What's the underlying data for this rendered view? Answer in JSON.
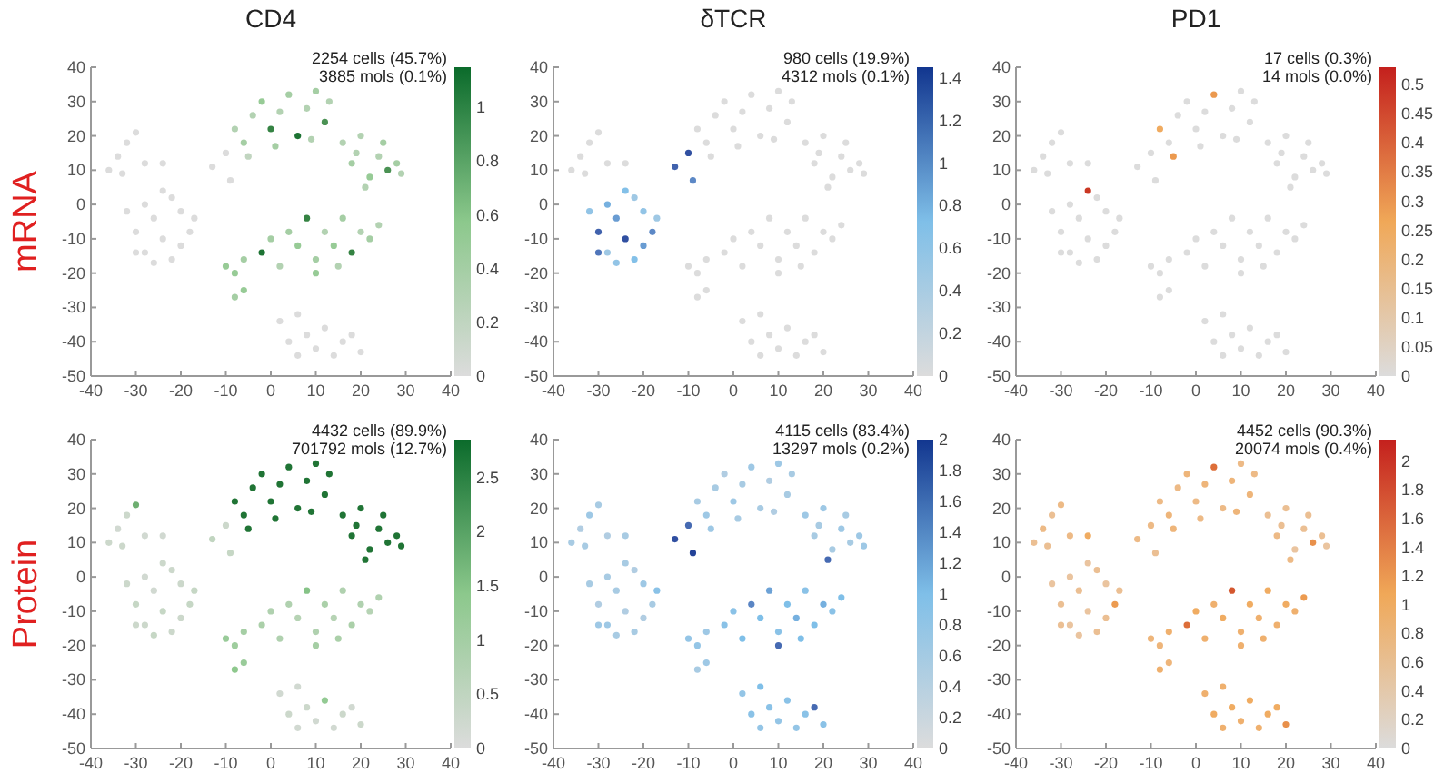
{
  "chart_data": [
    {
      "type": "scatter",
      "title": "CD4",
      "ylabel": "mRNA",
      "annotations": [
        "2254 cells (45.7%)",
        "3885 mols (0.1%)"
      ],
      "xlim": [
        -40,
        40
      ],
      "ylim": [
        -50,
        40
      ],
      "xticks": [
        -40,
        -30,
        -20,
        -10,
        0,
        10,
        20,
        30,
        40
      ],
      "yticks": [
        -50,
        -40,
        -30,
        -20,
        -10,
        0,
        10,
        20,
        30,
        40
      ],
      "clim": [
        0,
        1.15
      ],
      "cticks": [
        0,
        0.2,
        0.4,
        0.6,
        0.8,
        1
      ],
      "marker": "circle",
      "grid": false,
      "series": [
        {
          "x": [
            -36,
            -34,
            -32,
            -30,
            -28,
            -33,
            -24,
            -32,
            -30,
            -28,
            -26,
            -24,
            -22,
            -20,
            -18,
            -22,
            -28,
            -30,
            -26,
            -20,
            -24,
            -17,
            -13,
            -9,
            -10,
            -8,
            -6,
            -4,
            -2,
            0,
            2,
            4,
            6,
            8,
            10,
            12,
            13,
            -5,
            1,
            9,
            16,
            18,
            20,
            22,
            24,
            26,
            28,
            21,
            25,
            29,
            19,
            -10,
            -6,
            -2,
            2,
            4,
            6,
            8,
            10,
            12,
            14,
            16,
            18,
            20,
            22,
            24,
            10,
            0,
            15,
            -8,
            -8,
            -6,
            2,
            4,
            6,
            8,
            10,
            12,
            14,
            16,
            18,
            20,
            6
          ],
          "values": [
            10,
            14,
            18,
            21,
            12,
            9,
            12,
            -2,
            -8,
            -14,
            -4,
            -10,
            -16,
            -2,
            -8,
            2,
            0,
            -14,
            -17,
            -12,
            4,
            -4,
            11,
            7,
            15,
            22,
            18,
            26,
            30,
            22,
            27,
            32,
            20,
            28,
            33,
            24,
            30,
            14,
            17,
            19,
            18,
            12,
            20,
            8,
            14,
            10,
            12,
            5,
            18,
            9,
            15,
            -18,
            -16,
            -14,
            -18,
            -8,
            -12,
            -4,
            -16,
            -8,
            -12,
            -4,
            -14,
            -8,
            -10,
            -6,
            -20,
            -10,
            -18,
            -20,
            -27,
            -25,
            -34,
            -40,
            -44,
            -38,
            -42,
            -36,
            -44,
            -40,
            -38,
            -43,
            -32
          ],
          "cvalues": [
            0,
            0,
            0,
            0,
            0,
            0,
            0,
            0,
            0,
            0,
            0,
            0,
            0,
            0,
            0,
            0,
            0,
            0,
            0,
            0,
            0,
            0,
            0,
            0,
            0,
            0.3,
            0.4,
            0.3,
            0.5,
            1.0,
            0.3,
            0.4,
            1.1,
            0.3,
            0.4,
            0.9,
            0.3,
            0.2,
            0.4,
            0.3,
            0.3,
            0.4,
            0.3,
            0.5,
            0.3,
            0.9,
            0.4,
            0.3,
            0.4,
            0.3,
            0.3,
            0.5,
            0.4,
            1.1,
            0.3,
            0.4,
            0.5,
            1.0,
            0.4,
            0.3,
            0.5,
            0.4,
            1.0,
            0.3,
            0.4,
            0.3,
            0.5,
            0.4,
            0.3,
            0.5,
            0.4,
            0.5,
            0,
            0,
            0,
            0,
            0,
            0,
            0,
            0,
            0,
            0,
            0
          ]
        }
      ]
    },
    {
      "type": "scatter",
      "title": "δTCR",
      "annotations": [
        "980 cells (19.9%)",
        "4312 mols (0.1%)"
      ],
      "xlim": [
        -40,
        40
      ],
      "ylim": [
        -50,
        40
      ],
      "xticks": [
        -40,
        -30,
        -20,
        -10,
        0,
        10,
        20,
        30,
        40
      ],
      "yticks": [
        -50,
        -40,
        -30,
        -20,
        -10,
        0,
        10,
        20,
        30,
        40
      ],
      "clim": [
        0,
        1.45
      ],
      "cticks": [
        0,
        0.2,
        0.4,
        0.6,
        0.8,
        1,
        1.2,
        1.4
      ],
      "marker": "circle",
      "grid": false,
      "series": [
        {
          "x": [
            -36,
            -34,
            -32,
            -30,
            -28,
            -33,
            -24,
            -32,
            -30,
            -28,
            -26,
            -24,
            -22,
            -20,
            -18,
            -22,
            -28,
            -30,
            -26,
            -20,
            -24,
            -17,
            -13,
            -9,
            -10,
            -8,
            -6,
            -4,
            -2,
            0,
            2,
            4,
            6,
            8,
            10,
            12,
            13,
            -5,
            1,
            9,
            16,
            18,
            20,
            22,
            24,
            26,
            28,
            21,
            25,
            29,
            19,
            -10,
            -6,
            -2,
            2,
            4,
            6,
            8,
            10,
            12,
            14,
            16,
            18,
            20,
            22,
            24,
            10,
            0,
            15,
            -8,
            -8,
            -6,
            2,
            4,
            6,
            8,
            10,
            12,
            14,
            16,
            18,
            20,
            6
          ],
          "values": [
            10,
            14,
            18,
            21,
            12,
            9,
            12,
            -2,
            -8,
            -14,
            -4,
            -10,
            -16,
            -2,
            -8,
            2,
            0,
            -14,
            -17,
            -12,
            4,
            -4,
            11,
            7,
            15,
            22,
            18,
            26,
            30,
            22,
            27,
            32,
            20,
            28,
            33,
            24,
            30,
            14,
            17,
            19,
            18,
            12,
            20,
            8,
            14,
            10,
            12,
            5,
            18,
            9,
            15,
            -18,
            -16,
            -14,
            -18,
            -8,
            -12,
            -4,
            -16,
            -8,
            -12,
            -4,
            -14,
            -8,
            -10,
            -6,
            -20,
            -10,
            -18,
            -20,
            -27,
            -25,
            -34,
            -40,
            -44,
            -38,
            -42,
            -36,
            -44,
            -40,
            -38,
            -43,
            -32
          ],
          "cvalues": [
            0,
            0,
            0,
            0,
            0,
            0,
            0,
            0.6,
            1.2,
            0.5,
            0.9,
            1.3,
            0.7,
            0.6,
            1.0,
            0.5,
            0.8,
            1.1,
            0.6,
            0.9,
            0.7,
            0.5,
            1.2,
            1.0,
            1.3,
            0,
            0,
            0,
            0,
            0,
            0,
            0,
            0,
            0,
            0,
            0,
            0,
            0,
            0,
            0,
            0,
            0,
            0,
            0,
            0,
            0,
            0,
            0,
            0,
            0,
            0,
            0,
            0,
            0,
            0,
            0,
            0,
            0,
            0,
            0,
            0,
            0,
            0,
            0,
            0,
            0,
            0,
            0,
            0,
            0,
            0,
            0,
            0,
            0,
            0,
            0,
            0,
            0,
            0,
            0,
            0,
            0,
            0
          ]
        }
      ]
    },
    {
      "type": "scatter",
      "title": "PD1",
      "annotations": [
        "17 cells (0.3%)",
        "14 mols (0.0%)"
      ],
      "xlim": [
        -40,
        40
      ],
      "ylim": [
        -50,
        40
      ],
      "xticks": [
        -40,
        -30,
        -20,
        -10,
        0,
        10,
        20,
        30,
        40
      ],
      "yticks": [
        -50,
        -40,
        -30,
        -20,
        -10,
        0,
        10,
        20,
        30,
        40
      ],
      "clim": [
        0,
        0.53
      ],
      "cticks": [
        0,
        0.05,
        0.1,
        0.15,
        0.2,
        0.25,
        0.3,
        0.35,
        0.4,
        0.45,
        0.5
      ],
      "marker": "circle",
      "grid": false,
      "series": [
        {
          "x": [
            -36,
            -34,
            -32,
            -30,
            -28,
            -33,
            -24,
            -32,
            -30,
            -28,
            -26,
            -24,
            -22,
            -20,
            -18,
            -22,
            -28,
            -30,
            -26,
            -20,
            -24,
            -17,
            -13,
            -9,
            -10,
            -8,
            -6,
            -4,
            -2,
            0,
            2,
            4,
            6,
            8,
            10,
            12,
            13,
            -5,
            1,
            9,
            16,
            18,
            20,
            22,
            24,
            26,
            28,
            21,
            25,
            29,
            19,
            -10,
            -6,
            -2,
            2,
            4,
            6,
            8,
            10,
            12,
            14,
            16,
            18,
            20,
            22,
            24,
            10,
            0,
            15,
            -8,
            -8,
            -6,
            2,
            4,
            6,
            8,
            10,
            12,
            14,
            16,
            18,
            20,
            6
          ],
          "values": [
            10,
            14,
            18,
            21,
            12,
            9,
            12,
            -2,
            -8,
            -14,
            -4,
            -10,
            -16,
            -2,
            -8,
            2,
            0,
            -14,
            -17,
            -12,
            4,
            -4,
            11,
            7,
            15,
            22,
            18,
            26,
            30,
            22,
            27,
            32,
            20,
            28,
            33,
            24,
            30,
            14,
            17,
            19,
            18,
            12,
            20,
            8,
            14,
            10,
            12,
            5,
            18,
            9,
            15,
            -18,
            -16,
            -14,
            -18,
            -8,
            -12,
            -4,
            -16,
            -8,
            -12,
            -4,
            -14,
            -8,
            -10,
            -6,
            -20,
            -10,
            -18,
            -20,
            -27,
            -25,
            -34,
            -40,
            -44,
            -38,
            -42,
            -36,
            -44,
            -40,
            -38,
            -43,
            -32
          ],
          "cvalues": [
            0,
            0,
            0,
            0,
            0,
            0,
            0,
            0,
            0,
            0,
            0,
            0,
            0,
            0,
            0,
            0,
            0,
            0,
            0,
            0,
            0.5,
            0,
            0,
            0,
            0,
            0.25,
            0,
            0,
            0,
            0,
            0,
            0.3,
            0,
            0,
            0,
            0,
            0,
            0.3,
            0,
            0,
            0,
            0,
            0,
            0,
            0,
            0,
            0,
            0,
            0,
            0,
            0,
            0,
            0,
            0,
            0,
            0,
            0,
            0,
            0,
            0,
            0,
            0,
            0,
            0,
            0,
            0,
            0,
            0,
            0,
            0,
            0,
            0,
            0,
            0,
            0,
            0,
            0,
            0,
            0,
            0,
            0,
            0,
            0
          ]
        }
      ]
    },
    {
      "type": "scatter",
      "ylabel": "Protein",
      "annotations": [
        "4432 cells (89.9%)",
        "701792 mols (12.7%)"
      ],
      "xlim": [
        -40,
        40
      ],
      "ylim": [
        -50,
        40
      ],
      "xticks": [
        -40,
        -30,
        -20,
        -10,
        0,
        10,
        20,
        30,
        40
      ],
      "yticks": [
        -50,
        -40,
        -30,
        -20,
        -10,
        0,
        10,
        20,
        30,
        40
      ],
      "clim": [
        0,
        2.85
      ],
      "cticks": [
        0,
        0.5,
        1,
        1.5,
        2,
        2.5
      ],
      "marker": "circle",
      "grid": false,
      "series": [
        {
          "x": [
            -36,
            -34,
            -32,
            -30,
            -28,
            -33,
            -24,
            -32,
            -30,
            -28,
            -26,
            -24,
            -22,
            -20,
            -18,
            -22,
            -28,
            -30,
            -26,
            -20,
            -24,
            -17,
            -13,
            -9,
            -10,
            -8,
            -6,
            -4,
            -2,
            0,
            2,
            4,
            6,
            8,
            10,
            12,
            13,
            -5,
            1,
            9,
            16,
            18,
            20,
            22,
            24,
            26,
            28,
            21,
            25,
            29,
            19,
            -10,
            -6,
            -2,
            2,
            4,
            6,
            8,
            10,
            12,
            14,
            16,
            18,
            20,
            22,
            24,
            10,
            0,
            15,
            -8,
            -8,
            -6,
            2,
            4,
            6,
            8,
            10,
            12,
            14,
            16,
            18,
            20,
            6
          ],
          "values": [
            10,
            14,
            18,
            21,
            12,
            9,
            12,
            -2,
            -8,
            -14,
            -4,
            -10,
            -16,
            -2,
            -8,
            2,
            0,
            -14,
            -17,
            -12,
            4,
            -4,
            11,
            7,
            15,
            22,
            18,
            26,
            30,
            22,
            27,
            32,
            20,
            28,
            33,
            24,
            30,
            14,
            17,
            19,
            18,
            12,
            20,
            8,
            14,
            10,
            12,
            5,
            18,
            9,
            15,
            -18,
            -16,
            -14,
            -18,
            -8,
            -12,
            -4,
            -16,
            -8,
            -12,
            -4,
            -14,
            -8,
            -10,
            -6,
            -20,
            -10,
            -18,
            -20,
            -27,
            -25,
            -34,
            -40,
            -44,
            -38,
            -42,
            -36,
            -44,
            -40,
            -38,
            -43,
            -32
          ],
          "cvalues": [
            0.3,
            0.2,
            0.3,
            1.8,
            0.2,
            0.3,
            0.2,
            0.3,
            0.4,
            0.3,
            0.2,
            0.4,
            0.3,
            0.3,
            0.4,
            0.3,
            0.2,
            0.3,
            0.4,
            0.3,
            0.3,
            0.4,
            0.5,
            0.4,
            0.3,
            2.7,
            2.7,
            2.7,
            2.7,
            2.7,
            2.7,
            2.7,
            2.7,
            2.7,
            2.7,
            2.7,
            2.7,
            2.7,
            2.7,
            2.7,
            2.7,
            2.7,
            2.7,
            2.7,
            2.7,
            2.7,
            2.7,
            2.7,
            2.7,
            2.7,
            2.7,
            1.2,
            1.0,
            0.9,
            0.8,
            0.8,
            0.7,
            1.5,
            0.8,
            0.9,
            0.7,
            0.8,
            0.9,
            0.8,
            0.7,
            0.8,
            1.0,
            0.8,
            0.9,
            1.1,
            1.4,
            1.2,
            0.2,
            0.3,
            0.2,
            0.3,
            0.2,
            1.3,
            0.2,
            0.3,
            0.2,
            0.3,
            0.2
          ]
        }
      ]
    },
    {
      "type": "scatter",
      "annotations": [
        "4115 cells (83.4%)",
        "13297 mols (0.2%)"
      ],
      "xlim": [
        -40,
        40
      ],
      "ylim": [
        -50,
        40
      ],
      "xticks": [
        -40,
        -30,
        -20,
        -10,
        0,
        10,
        20,
        30,
        40
      ],
      "yticks": [
        -50,
        -40,
        -30,
        -20,
        -10,
        0,
        10,
        20,
        30,
        40
      ],
      "clim": [
        0,
        2
      ],
      "cticks": [
        0,
        0.2,
        0.4,
        0.6,
        0.8,
        1,
        1.2,
        1.4,
        1.6,
        1.8,
        2
      ],
      "marker": "circle",
      "grid": false,
      "series": [
        {
          "x": [
            -36,
            -34,
            -32,
            -30,
            -28,
            -33,
            -24,
            -32,
            -30,
            -28,
            -26,
            -24,
            -22,
            -20,
            -18,
            -22,
            -28,
            -30,
            -26,
            -20,
            -24,
            -17,
            -13,
            -9,
            -10,
            -8,
            -6,
            -4,
            -2,
            0,
            2,
            4,
            6,
            8,
            10,
            12,
            13,
            -5,
            1,
            9,
            16,
            18,
            20,
            22,
            24,
            26,
            28,
            21,
            25,
            29,
            19,
            -10,
            -6,
            -2,
            2,
            4,
            6,
            8,
            10,
            12,
            14,
            16,
            18,
            20,
            22,
            24,
            10,
            0,
            15,
            -8,
            -8,
            -6,
            2,
            4,
            6,
            8,
            10,
            12,
            14,
            16,
            18,
            20,
            6
          ],
          "values": [
            10,
            14,
            18,
            21,
            12,
            9,
            12,
            -2,
            -8,
            -14,
            -4,
            -10,
            -16,
            -2,
            -8,
            2,
            0,
            -14,
            -17,
            -12,
            4,
            -4,
            11,
            7,
            15,
            22,
            18,
            26,
            30,
            22,
            27,
            32,
            20,
            28,
            33,
            24,
            30,
            14,
            17,
            19,
            18,
            12,
            20,
            8,
            14,
            10,
            12,
            5,
            18,
            9,
            15,
            -18,
            -16,
            -14,
            -18,
            -8,
            -12,
            -4,
            -16,
            -8,
            -12,
            -4,
            -14,
            -8,
            -10,
            -6,
            -20,
            -10,
            -18,
            -20,
            -27,
            -25,
            -34,
            -40,
            -44,
            -38,
            -42,
            -36,
            -44,
            -40,
            -38,
            -43,
            -32
          ],
          "cvalues": [
            0.6,
            0.5,
            0.7,
            0.6,
            0.5,
            0.6,
            0.6,
            0.6,
            0.5,
            0.7,
            0.6,
            0.5,
            0.6,
            0.7,
            0.6,
            0.5,
            0.6,
            0.7,
            0.6,
            0.5,
            0.6,
            0.9,
            1.8,
            1.9,
            1.6,
            0.6,
            0.7,
            0.6,
            0.5,
            0.7,
            0.6,
            0.7,
            0.6,
            0.5,
            0.7,
            0.6,
            0.6,
            0.7,
            0.6,
            0.5,
            0.7,
            0.6,
            0.7,
            0.6,
            0.7,
            0.6,
            0.7,
            1.6,
            0.6,
            0.7,
            0.6,
            0.8,
            0.7,
            0.9,
            1.0,
            1.4,
            1.0,
            1.2,
            0.9,
            1.0,
            1.1,
            0.9,
            1.0,
            1.1,
            0.9,
            1.0,
            1.6,
            0.9,
            1.0,
            0.8,
            0.6,
            0.7,
            0.8,
            0.9,
            0.8,
            0.9,
            0.8,
            0.9,
            0.8,
            0.9,
            1.6,
            0.9,
            1.0
          ]
        }
      ]
    },
    {
      "type": "scatter",
      "annotations": [
        "4452 cells (90.3%)",
        "20074 mols (0.4%)"
      ],
      "xlim": [
        -40,
        40
      ],
      "ylim": [
        -50,
        40
      ],
      "xticks": [
        -40,
        -30,
        -20,
        -10,
        0,
        10,
        20,
        30,
        40
      ],
      "yticks": [
        -50,
        -40,
        -30,
        -20,
        -10,
        0,
        10,
        20,
        30,
        40
      ],
      "clim": [
        0,
        2.15
      ],
      "cticks": [
        0,
        0.2,
        0.4,
        0.6,
        0.8,
        1,
        1.2,
        1.4,
        1.6,
        1.8,
        2
      ],
      "marker": "circle",
      "grid": false,
      "series": [
        {
          "x": [
            -36,
            -34,
            -32,
            -30,
            -28,
            -33,
            -24,
            -32,
            -30,
            -28,
            -26,
            -24,
            -22,
            -20,
            -18,
            -22,
            -28,
            -30,
            -26,
            -20,
            -24,
            -17,
            -13,
            -9,
            -10,
            -8,
            -6,
            -4,
            -2,
            0,
            2,
            4,
            6,
            8,
            10,
            12,
            13,
            -5,
            1,
            9,
            16,
            18,
            20,
            22,
            24,
            26,
            28,
            21,
            25,
            29,
            19,
            -10,
            -6,
            -2,
            2,
            4,
            6,
            8,
            10,
            12,
            14,
            16,
            18,
            20,
            22,
            24,
            10,
            0,
            15,
            -8,
            -8,
            -6,
            2,
            4,
            6,
            8,
            10,
            12,
            14,
            16,
            18,
            20,
            6
          ],
          "values": [
            10,
            14,
            18,
            21,
            12,
            9,
            12,
            -2,
            -8,
            -14,
            -4,
            -10,
            -16,
            -2,
            -8,
            2,
            0,
            -14,
            -17,
            -12,
            4,
            -4,
            11,
            7,
            15,
            22,
            18,
            26,
            30,
            22,
            27,
            32,
            20,
            28,
            33,
            24,
            30,
            14,
            17,
            19,
            18,
            12,
            20,
            8,
            14,
            10,
            12,
            5,
            18,
            9,
            15,
            -18,
            -16,
            -14,
            -18,
            -8,
            -12,
            -4,
            -16,
            -8,
            -12,
            -4,
            -14,
            -8,
            -10,
            -6,
            -20,
            -10,
            -18,
            -20,
            -27,
            -25,
            -34,
            -40,
            -44,
            -38,
            -42,
            -36,
            -44,
            -40,
            -38,
            -43,
            -32
          ],
          "cvalues": [
            0.6,
            0.7,
            0.6,
            0.7,
            0.7,
            0.6,
            1.0,
            0.5,
            0.6,
            0.5,
            0.6,
            0.5,
            0.6,
            0.5,
            1.2,
            0.6,
            0.5,
            0.6,
            0.5,
            0.6,
            0.5,
            0.6,
            0.7,
            0.6,
            0.7,
            0.7,
            0.8,
            0.7,
            0.8,
            0.7,
            0.8,
            1.6,
            0.7,
            0.8,
            0.7,
            0.8,
            0.7,
            0.8,
            0.7,
            0.8,
            0.6,
            0.7,
            0.6,
            0.5,
            0.6,
            1.3,
            0.6,
            0.7,
            0.6,
            0.5,
            0.6,
            0.8,
            0.9,
            1.6,
            0.9,
            0.9,
            1.0,
            1.8,
            0.9,
            1.0,
            0.9,
            1.0,
            0.9,
            1.0,
            0.9,
            1.2,
            0.9,
            1.0,
            0.9,
            0.8,
            0.9,
            0.8,
            0.9,
            1.0,
            0.9,
            1.0,
            0.9,
            1.0,
            0.9,
            1.0,
            1.0,
            1.3,
            0.9
          ]
        }
      ]
    }
  ]
}
